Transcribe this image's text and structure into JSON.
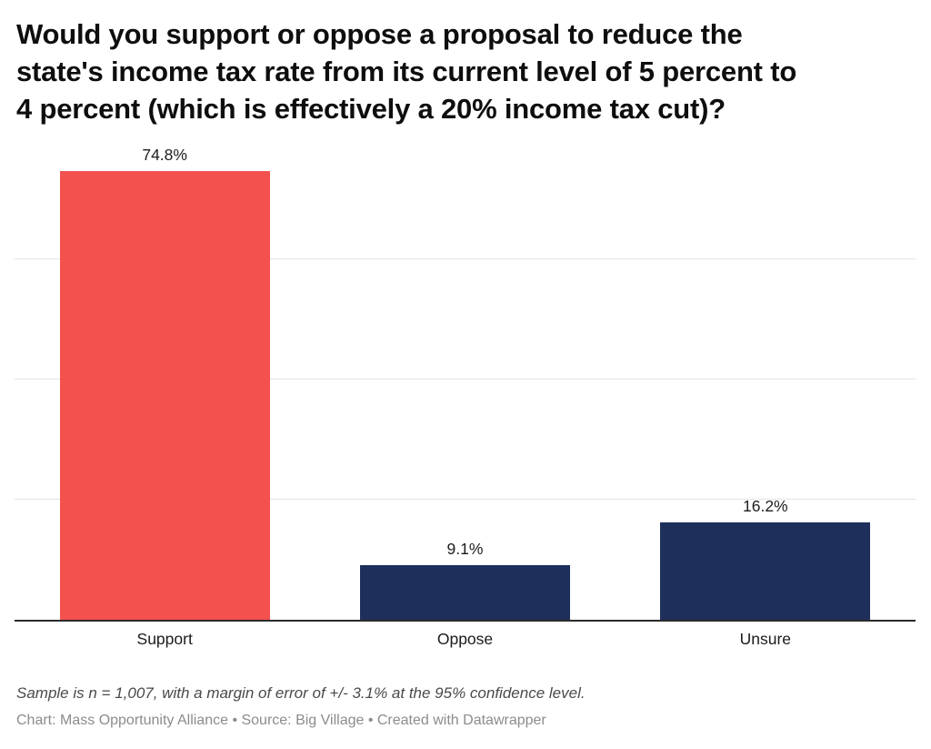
{
  "title_lines": [
    "Would you support or oppose a proposal to reduce the",
    "state's income tax rate from its current level of 5 percent to",
    "4 percent (which is effectively a 20% income tax cut)?"
  ],
  "chart_data": {
    "type": "bar",
    "title": "Would you support or oppose a proposal to reduce the state's income tax rate from its current level of 5 percent to 4 percent (which is effectively a 20% income tax cut)?",
    "categories": [
      "Support",
      "Oppose",
      "Unsure"
    ],
    "values": [
      74.8,
      9.1,
      16.2
    ],
    "value_labels": [
      "74.8%",
      "9.1%",
      "16.2%"
    ],
    "bar_colors": [
      "#f2514e",
      "#1e2f5c",
      "#1e2f5c"
    ],
    "xlabel": "",
    "ylabel": "",
    "ylim": [
      0,
      80.5
    ],
    "gridlines": [
      20,
      40,
      60
    ],
    "grid": "horizontal, solid light gray, no y tick labels",
    "legend": "none"
  },
  "footer": {
    "note": "Sample is n = 1,007, with a margin of error of +/- 3.1% at the 95% confidence level.",
    "byline": "Chart: Mass Opportunity Alliance • Source: Big Village • Created with Datawrapper"
  },
  "colors": {
    "support_bar": "#f2514e",
    "oppose_bar": "#1e2f5c",
    "unsure_bar": "#1e2f5c",
    "axis_line": "#2b2b2b",
    "gridline": "#e4e4e4",
    "title_text": "#0e0e0e",
    "value_label_text": "#1d1d1d",
    "note_text": "#4a4a4a",
    "byline_text": "#8c8c8c",
    "background": "#ffffff"
  }
}
